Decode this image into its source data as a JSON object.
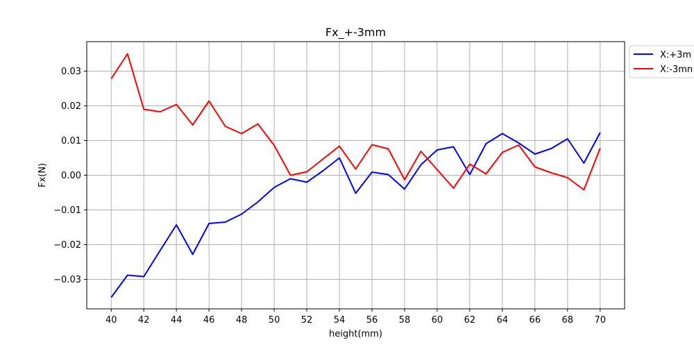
{
  "chart_data": {
    "type": "line",
    "title": "Fx_+-3mm",
    "xlabel": "height(mm)",
    "ylabel": "Fx(N)",
    "xlim": [
      38.5,
      71.5
    ],
    "ylim": [
      -0.0385,
      0.0385
    ],
    "x_ticks": [
      40,
      42,
      44,
      46,
      48,
      50,
      52,
      54,
      56,
      58,
      60,
      62,
      64,
      66,
      68,
      70
    ],
    "y_ticks": [
      -0.03,
      -0.02,
      -0.01,
      0.0,
      0.01,
      0.02,
      0.03
    ],
    "y_tick_labels": [
      "−0.03",
      "−0.02",
      "−0.01",
      "0.00",
      "0.01",
      "0.02",
      "0.03"
    ],
    "grid": true,
    "legend_position": "outside-top-right",
    "x": [
      40,
      41,
      42,
      43,
      44,
      45,
      46,
      47,
      48,
      49,
      50,
      51,
      52,
      53,
      54,
      55,
      56,
      57,
      58,
      59,
      60,
      61,
      62,
      63,
      64,
      65,
      66,
      67,
      68,
      69,
      70
    ],
    "series": [
      {
        "name": "X:+3m",
        "color": "#0000ff",
        "values": [
          -0.0352,
          -0.0288,
          -0.0292,
          -0.0217,
          -0.0143,
          -0.0228,
          -0.0139,
          -0.0135,
          -0.0112,
          -0.0077,
          -0.0035,
          -0.001,
          -0.002,
          0.0013,
          0.005,
          -0.0052,
          0.0009,
          0.0002,
          -0.004,
          0.003,
          0.0073,
          0.0082,
          0.0002,
          0.0091,
          0.012,
          0.0093,
          0.0061,
          0.0077,
          0.0105,
          0.0035,
          0.0123
        ]
      },
      {
        "name": "X:-3mn",
        "color": "#ff0000",
        "values": [
          0.0278,
          0.035,
          0.019,
          0.0183,
          0.0204,
          0.0145,
          0.0214,
          0.0141,
          0.012,
          0.0148,
          0.0086,
          0.0,
          0.001,
          0.0047,
          0.0084,
          0.0018,
          0.0088,
          0.0076,
          -0.0013,
          0.0069,
          0.0016,
          -0.0037,
          0.0032,
          0.0004,
          0.0066,
          0.0087,
          0.0024,
          0.0007,
          -0.0007,
          -0.0042,
          0.0078
        ]
      }
    ]
  }
}
